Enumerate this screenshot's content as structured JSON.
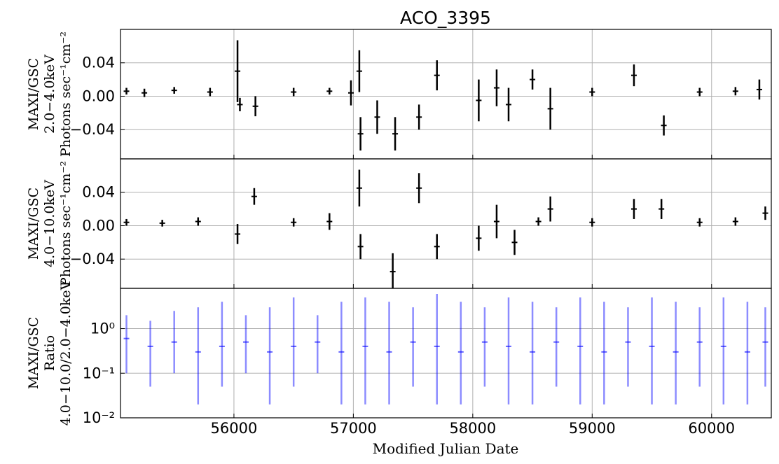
{
  "chart_data": [
    {
      "type": "scatter",
      "panel": "soft",
      "title": "ACO_3395",
      "ylabel_lines": [
        "MAXI/GSC",
        "2.0−4.0keV",
        "Photons sec⁻¹cm⁻²"
      ],
      "ylim": [
        -0.075,
        0.08
      ],
      "xlim": [
        55050,
        60500
      ],
      "grid": true,
      "yticks": [
        -0.04,
        0.0,
        0.04
      ],
      "ytick_labels": [
        "−0.04",
        "0.00",
        "0.04"
      ],
      "series": [
        {
          "color": "#000000",
          "points": [
            {
              "x": 55100,
              "y": 0.006,
              "err": 0.004
            },
            {
              "x": 55250,
              "y": 0.004,
              "err": 0.005
            },
            {
              "x": 55500,
              "y": 0.007,
              "err": 0.004
            },
            {
              "x": 55800,
              "y": 0.005,
              "err": 0.005
            },
            {
              "x": 56030,
              "y": 0.03,
              "err": 0.037
            },
            {
              "x": 56050,
              "y": -0.01,
              "err": 0.008
            },
            {
              "x": 56180,
              "y": -0.012,
              "err": 0.012
            },
            {
              "x": 56500,
              "y": 0.005,
              "err": 0.005
            },
            {
              "x": 56800,
              "y": 0.006,
              "err": 0.004
            },
            {
              "x": 56980,
              "y": 0.004,
              "err": 0.015
            },
            {
              "x": 57050,
              "y": 0.03,
              "err": 0.025
            },
            {
              "x": 57060,
              "y": -0.045,
              "err": 0.02
            },
            {
              "x": 57200,
              "y": -0.025,
              "err": 0.02
            },
            {
              "x": 57350,
              "y": -0.045,
              "err": 0.02
            },
            {
              "x": 57550,
              "y": -0.025,
              "err": 0.015
            },
            {
              "x": 57700,
              "y": 0.025,
              "err": 0.018
            },
            {
              "x": 58050,
              "y": -0.005,
              "err": 0.025
            },
            {
              "x": 58200,
              "y": 0.01,
              "err": 0.022
            },
            {
              "x": 58300,
              "y": -0.01,
              "err": 0.02
            },
            {
              "x": 58500,
              "y": 0.02,
              "err": 0.012
            },
            {
              "x": 58650,
              "y": -0.015,
              "err": 0.025
            },
            {
              "x": 59000,
              "y": 0.005,
              "err": 0.005
            },
            {
              "x": 59350,
              "y": 0.025,
              "err": 0.013
            },
            {
              "x": 59600,
              "y": -0.035,
              "err": 0.012
            },
            {
              "x": 59900,
              "y": 0.005,
              "err": 0.005
            },
            {
              "x": 60200,
              "y": 0.006,
              "err": 0.005
            },
            {
              "x": 60400,
              "y": 0.008,
              "err": 0.012
            }
          ]
        }
      ]
    },
    {
      "type": "scatter",
      "panel": "hard",
      "ylabel_lines": [
        "MAXI/GSC",
        "4.0−10.0keV",
        "Photons sec⁻¹cm⁻²"
      ],
      "ylim": [
        -0.075,
        0.08
      ],
      "xlim": [
        55050,
        60500
      ],
      "grid": true,
      "yticks": [
        -0.04,
        0.0,
        0.04
      ],
      "ytick_labels": [
        "−0.04",
        "0.00",
        "0.04"
      ],
      "series": [
        {
          "color": "#000000",
          "points": [
            {
              "x": 55100,
              "y": 0.004,
              "err": 0.004
            },
            {
              "x": 55400,
              "y": 0.003,
              "err": 0.004
            },
            {
              "x": 55700,
              "y": 0.005,
              "err": 0.005
            },
            {
              "x": 56030,
              "y": -0.01,
              "err": 0.012
            },
            {
              "x": 56170,
              "y": 0.035,
              "err": 0.01
            },
            {
              "x": 56500,
              "y": 0.004,
              "err": 0.005
            },
            {
              "x": 56800,
              "y": 0.005,
              "err": 0.01
            },
            {
              "x": 57050,
              "y": 0.045,
              "err": 0.022
            },
            {
              "x": 57060,
              "y": -0.025,
              "err": 0.015
            },
            {
              "x": 57330,
              "y": -0.055,
              "err": 0.022
            },
            {
              "x": 57550,
              "y": 0.045,
              "err": 0.018
            },
            {
              "x": 57700,
              "y": -0.025,
              "err": 0.015
            },
            {
              "x": 58050,
              "y": -0.015,
              "err": 0.015
            },
            {
              "x": 58200,
              "y": 0.005,
              "err": 0.02
            },
            {
              "x": 58350,
              "y": -0.02,
              "err": 0.015
            },
            {
              "x": 58550,
              "y": 0.005,
              "err": 0.005
            },
            {
              "x": 58650,
              "y": 0.02,
              "err": 0.015
            },
            {
              "x": 59000,
              "y": 0.004,
              "err": 0.005
            },
            {
              "x": 59350,
              "y": 0.02,
              "err": 0.012
            },
            {
              "x": 59580,
              "y": 0.02,
              "err": 0.012
            },
            {
              "x": 59900,
              "y": 0.004,
              "err": 0.005
            },
            {
              "x": 60200,
              "y": 0.005,
              "err": 0.005
            },
            {
              "x": 60450,
              "y": 0.015,
              "err": 0.008
            }
          ]
        }
      ]
    },
    {
      "type": "scatter",
      "panel": "ratio",
      "ylabel_lines": [
        "MAXI/GSC",
        "Ratio",
        "4.0−10.0/2.0−4.0keV"
      ],
      "xlabel": "Modified Julian Date",
      "yscale": "log",
      "ylim": [
        0.01,
        8
      ],
      "xlim": [
        55050,
        60500
      ],
      "grid": true,
      "yticks": [
        0.01,
        0.1,
        1
      ],
      "ytick_labels": [
        "10⁻²",
        "10⁻¹",
        "10⁰"
      ],
      "xticks": [
        56000,
        57000,
        58000,
        59000,
        60000
      ],
      "xtick_labels": [
        "56000",
        "57000",
        "58000",
        "59000",
        "60000"
      ],
      "series": [
        {
          "color": "#0000ff",
          "points": [
            {
              "x": 55100,
              "y": 0.6,
              "lo": 0.1,
              "hi": 2.0
            },
            {
              "x": 55300,
              "y": 0.4,
              "lo": 0.05,
              "hi": 1.5
            },
            {
              "x": 55500,
              "y": 0.5,
              "lo": 0.1,
              "hi": 2.5
            },
            {
              "x": 55700,
              "y": 0.3,
              "lo": 0.02,
              "hi": 3.0
            },
            {
              "x": 55900,
              "y": 0.4,
              "lo": 0.05,
              "hi": 4.0
            },
            {
              "x": 56100,
              "y": 0.5,
              "lo": 0.1,
              "hi": 2.0
            },
            {
              "x": 56300,
              "y": 0.3,
              "lo": 0.02,
              "hi": 3.0
            },
            {
              "x": 56500,
              "y": 0.4,
              "lo": 0.05,
              "hi": 5.0
            },
            {
              "x": 56700,
              "y": 0.5,
              "lo": 0.1,
              "hi": 2.0
            },
            {
              "x": 56900,
              "y": 0.3,
              "lo": 0.02,
              "hi": 4.0
            },
            {
              "x": 57100,
              "y": 0.4,
              "lo": 0.02,
              "hi": 5.0
            },
            {
              "x": 57300,
              "y": 0.3,
              "lo": 0.02,
              "hi": 4.0
            },
            {
              "x": 57500,
              "y": 0.5,
              "lo": 0.05,
              "hi": 3.0
            },
            {
              "x": 57700,
              "y": 0.4,
              "lo": 0.02,
              "hi": 6.0
            },
            {
              "x": 57900,
              "y": 0.3,
              "lo": 0.02,
              "hi": 4.0
            },
            {
              "x": 58100,
              "y": 0.5,
              "lo": 0.05,
              "hi": 3.0
            },
            {
              "x": 58300,
              "y": 0.4,
              "lo": 0.02,
              "hi": 5.0
            },
            {
              "x": 58500,
              "y": 0.3,
              "lo": 0.02,
              "hi": 4.0
            },
            {
              "x": 58700,
              "y": 0.5,
              "lo": 0.05,
              "hi": 3.0
            },
            {
              "x": 58900,
              "y": 0.4,
              "lo": 0.02,
              "hi": 5.0
            },
            {
              "x": 59100,
              "y": 0.3,
              "lo": 0.02,
              "hi": 4.0
            },
            {
              "x": 59300,
              "y": 0.5,
              "lo": 0.05,
              "hi": 3.0
            },
            {
              "x": 59500,
              "y": 0.4,
              "lo": 0.02,
              "hi": 5.0
            },
            {
              "x": 59700,
              "y": 0.3,
              "lo": 0.02,
              "hi": 4.0
            },
            {
              "x": 59900,
              "y": 0.5,
              "lo": 0.05,
              "hi": 3.0
            },
            {
              "x": 60100,
              "y": 0.4,
              "lo": 0.02,
              "hi": 5.0
            },
            {
              "x": 60300,
              "y": 0.3,
              "lo": 0.02,
              "hi": 4.0
            },
            {
              "x": 60450,
              "y": 0.5,
              "lo": 0.05,
              "hi": 3.0
            }
          ]
        }
      ]
    }
  ]
}
